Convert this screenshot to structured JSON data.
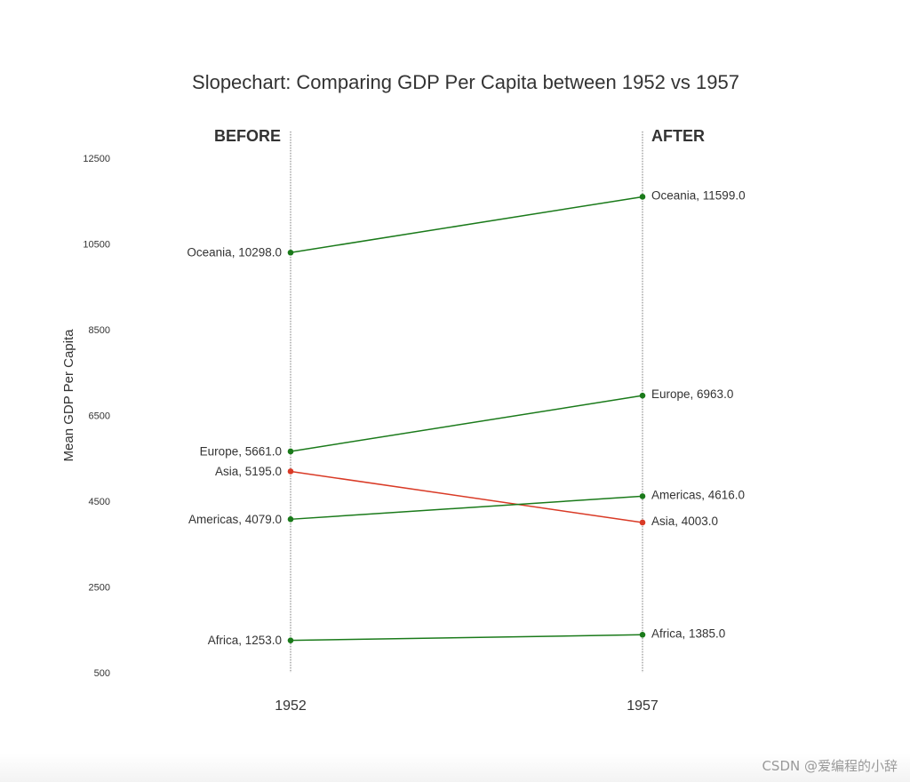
{
  "chart_data": {
    "type": "line",
    "title": "Slopechart: Comparing GDP Per Capita between 1952 vs 1957",
    "ylabel": "Mean GDP Per Capita",
    "xlabel": "",
    "x": [
      "1952",
      "1957"
    ],
    "left_header": "BEFORE",
    "right_header": "AFTER",
    "ylim": [
      500,
      13000
    ],
    "yticks": [
      500,
      2500,
      4500,
      6500,
      8500,
      10500,
      12500
    ],
    "yticklabels": [
      "500",
      "2500",
      "4500",
      "6500",
      "8500",
      "10500",
      "12500"
    ],
    "grid": false,
    "colors": {
      "increase": "#1a7a1a",
      "decrease": "#d93a26",
      "guide": "#777777"
    },
    "series": [
      {
        "name": "Oceania",
        "values": [
          10298.0,
          11599.0
        ],
        "left_label": "Oceania, 10298.0",
        "right_label": "Oceania, 11599.0"
      },
      {
        "name": "Europe",
        "values": [
          5661.0,
          6963.0
        ],
        "left_label": "Europe, 5661.0",
        "right_label": "Europe, 6963.0"
      },
      {
        "name": "Asia",
        "values": [
          5195.0,
          4003.0
        ],
        "left_label": "Asia, 5195.0",
        "right_label": "Asia, 4003.0"
      },
      {
        "name": "Americas",
        "values": [
          4079.0,
          4616.0
        ],
        "left_label": "Americas, 4079.0",
        "right_label": "Americas, 4616.0"
      },
      {
        "name": "Africa",
        "values": [
          1253.0,
          1385.0
        ],
        "left_label": "Africa, 1253.0",
        "right_label": "Africa, 1385.0"
      }
    ]
  },
  "watermark": "CSDN @爱编程的小辞"
}
